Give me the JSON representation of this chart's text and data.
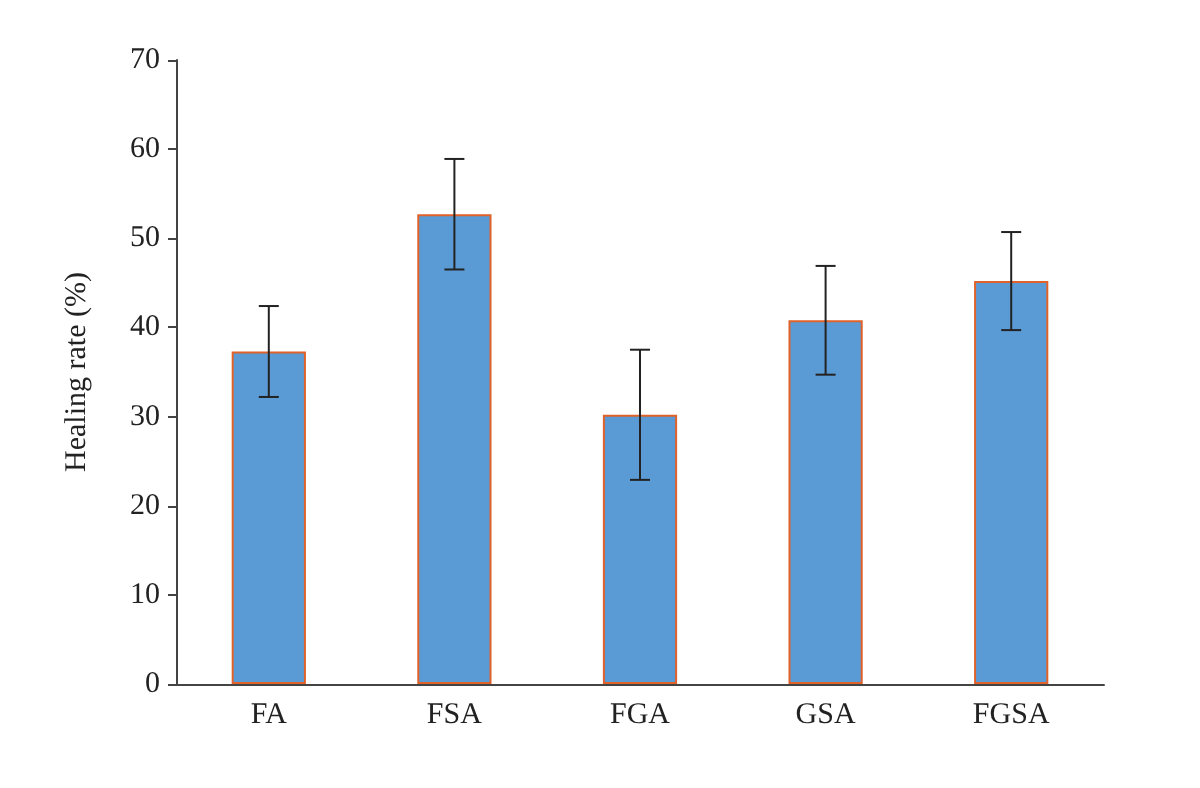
{
  "chart_data": {
    "type": "bar",
    "ylabel": "Healing rate (%)",
    "categories": [
      "FA",
      "FSA",
      "FGA",
      "GSA",
      "FGSA"
    ],
    "values": [
      37.3,
      52.7,
      30.2,
      40.8,
      45.2
    ],
    "errors": [
      5.1,
      6.2,
      7.3,
      6.1,
      5.5
    ],
    "color": "#5b9bd5",
    "ylim": [
      0,
      70
    ],
    "yticks": [
      0,
      10,
      20,
      30,
      40,
      50,
      60,
      70
    ],
    "grid": false
  }
}
